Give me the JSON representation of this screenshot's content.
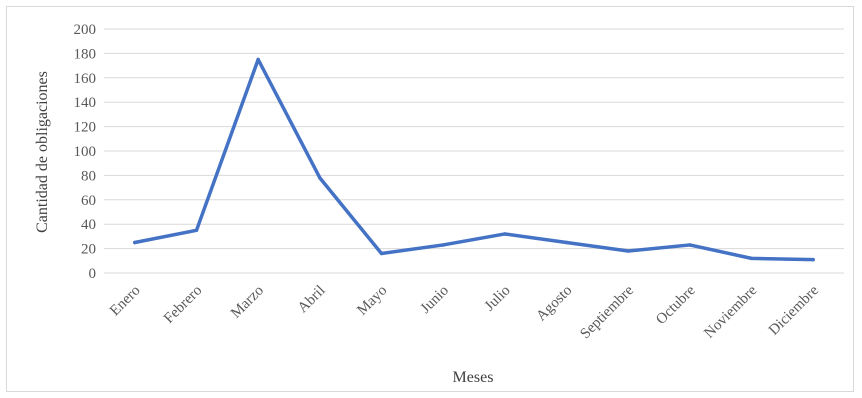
{
  "chart_data": {
    "type": "line",
    "title": "",
    "xlabel": "Meses",
    "ylabel": "Cantidad de obligaciones",
    "categories": [
      "Enero",
      "Febrero",
      "Marzo",
      "Abril",
      "Mayo",
      "Junio",
      "Julio",
      "Agosto",
      "Septiembre",
      "Octubre",
      "Noviembre",
      "Diciembre"
    ],
    "series": [
      {
        "values": [
          25,
          35,
          175,
          78,
          16,
          23,
          32,
          25,
          18,
          23,
          12,
          11
        ]
      }
    ],
    "ylim": [
      0,
      200
    ],
    "yticks": [
      "0",
      "20",
      "40",
      "60",
      "80",
      "100",
      "120",
      "140",
      "160",
      "180",
      "200"
    ],
    "grid": true,
    "legend": "none",
    "colors": {
      "line": "#4472c4",
      "grid": "#d9d9d9"
    }
  }
}
